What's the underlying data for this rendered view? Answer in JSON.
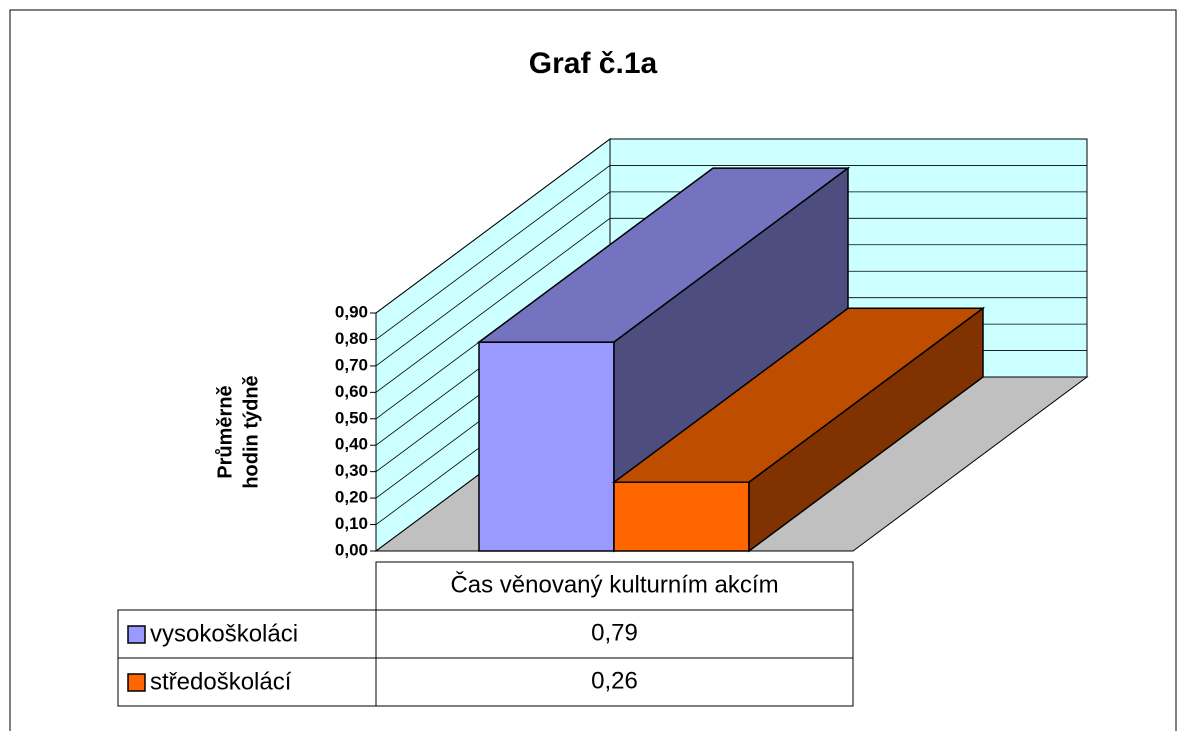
{
  "chart_data": {
    "type": "bar3d",
    "title": "Graf č.1a",
    "ylabel": [
      "Průměrně",
      "hodin týdně"
    ],
    "categories": [
      "Čas věnovaný kulturním akcím"
    ],
    "series": [
      {
        "name": "vysokoškoláci",
        "color": "#9999ff",
        "values": [
          0.79
        ],
        "value_labels": [
          "0,79"
        ]
      },
      {
        "name": "středoškolácí",
        "color": "#ff6600",
        "values": [
          0.26
        ],
        "value_labels": [
          "0,26"
        ]
      }
    ],
    "ylim": [
      0,
      0.9
    ],
    "yticks": [
      {
        "value": 0,
        "label": "0,00"
      },
      {
        "value": 0.1,
        "label": "0,10"
      },
      {
        "value": 0.2,
        "label": "0,20"
      },
      {
        "value": 0.3,
        "label": "0,30"
      },
      {
        "value": 0.4,
        "label": "0,40"
      },
      {
        "value": 0.5,
        "label": "0,50"
      },
      {
        "value": 0.6,
        "label": "0,60"
      },
      {
        "value": 0.7,
        "label": "0,70"
      },
      {
        "value": 0.8,
        "label": "0,80"
      },
      {
        "value": 0.9,
        "label": "0,90"
      }
    ],
    "grid": true
  }
}
